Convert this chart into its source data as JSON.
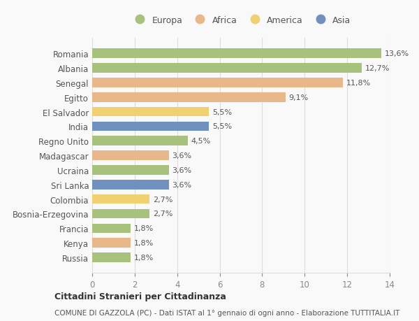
{
  "countries": [
    "Romania",
    "Albania",
    "Senegal",
    "Egitto",
    "El Salvador",
    "India",
    "Regno Unito",
    "Madagascar",
    "Ucraina",
    "Sri Lanka",
    "Colombia",
    "Bosnia-Erzegovina",
    "Francia",
    "Kenya",
    "Russia"
  ],
  "values": [
    13.6,
    12.7,
    11.8,
    9.1,
    5.5,
    5.5,
    4.5,
    3.6,
    3.6,
    3.6,
    2.7,
    2.7,
    1.8,
    1.8,
    1.8
  ],
  "labels": [
    "13,6%",
    "12,7%",
    "11,8%",
    "9,1%",
    "5,5%",
    "5,5%",
    "4,5%",
    "3,6%",
    "3,6%",
    "3,6%",
    "2,7%",
    "2,7%",
    "1,8%",
    "1,8%",
    "1,8%"
  ],
  "continents": [
    "Europa",
    "Europa",
    "Africa",
    "Africa",
    "America",
    "Asia",
    "Europa",
    "Africa",
    "Europa",
    "Asia",
    "America",
    "Europa",
    "Europa",
    "Africa",
    "Europa"
  ],
  "colors": {
    "Europa": "#a8c17c",
    "Africa": "#e8b88a",
    "America": "#f0d070",
    "Asia": "#7090c0"
  },
  "legend_order": [
    "Europa",
    "Africa",
    "America",
    "Asia"
  ],
  "xlim": [
    0,
    14
  ],
  "xticks": [
    0,
    2,
    4,
    6,
    8,
    10,
    12,
    14
  ],
  "title": "Cittadini Stranieri per Cittadinanza",
  "subtitle": "COMUNE DI GAZZOLA (PC) - Dati ISTAT al 1° gennaio di ogni anno - Elaborazione TUTTITALIA.IT",
  "background_color": "#f9f9f9",
  "grid_color": "#dddddd",
  "bar_height": 0.65
}
